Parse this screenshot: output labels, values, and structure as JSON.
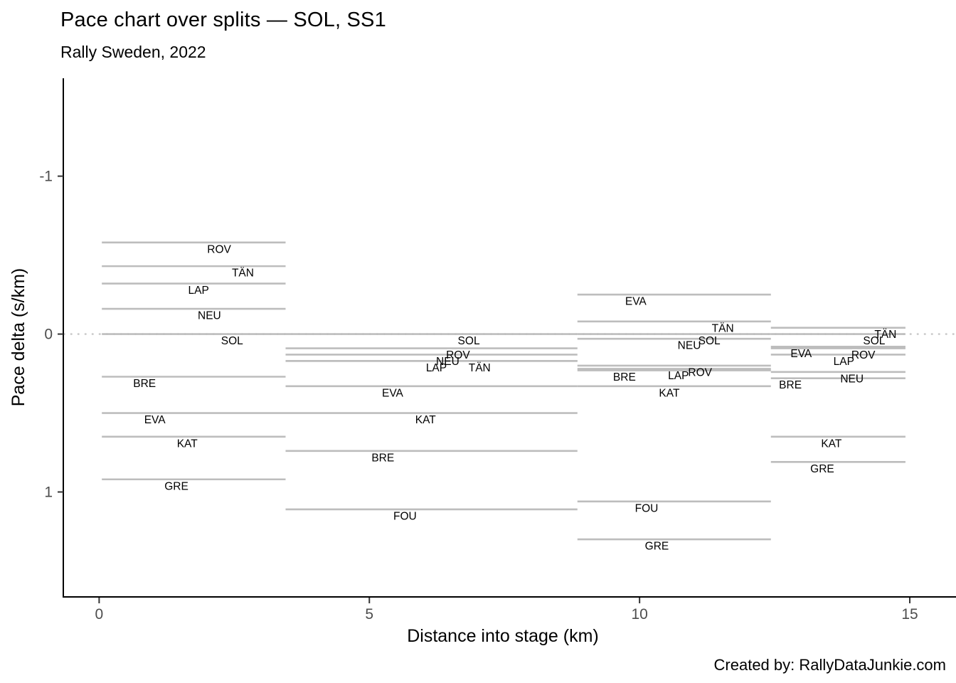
{
  "title": "Pace chart over splits — SOL, SS1",
  "subtitle": "Rally Sweden, 2022",
  "caption": "Created by: RallyDataJunkie.com",
  "chart_data": {
    "type": "segment",
    "title": "Pace chart over splits — SOL, SS1",
    "subtitle": "Rally Sweden, 2022",
    "xlabel": "Distance into stage (km)",
    "ylabel": "Pace delta (s/km)",
    "x_ticks": [
      0,
      5,
      10,
      15
    ],
    "y_ticks": [
      -1,
      0,
      1
    ],
    "xlim": [
      -0.65,
      15.75
    ],
    "ylim_bottom": 1.66,
    "ylim_top": -1.62,
    "y_axis_reversed": true,
    "grid": false,
    "legend": "none",
    "reference_line": {
      "y": 0,
      "style": "dotted"
    },
    "splits_km": [
      [
        0.05,
        3.45
      ],
      [
        3.45,
        8.85
      ],
      [
        8.85,
        12.43
      ],
      [
        12.43,
        14.92
      ]
    ],
    "series": [
      {
        "driver": "ROV",
        "deltas": [
          -0.58,
          0.09,
          0.2,
          0.09
        ],
        "label_x": [
          2.22,
          6.64,
          11.12,
          14.14
        ]
      },
      {
        "driver": "TÄN",
        "deltas": [
          -0.43,
          0.17,
          -0.08,
          -0.04
        ],
        "label_x": [
          2.66,
          7.04,
          11.54,
          14.55
        ]
      },
      {
        "driver": "LAP",
        "deltas": [
          -0.32,
          0.17,
          0.22,
          0.13
        ],
        "label_x": [
          1.84,
          6.24,
          10.72,
          13.78
        ]
      },
      {
        "driver": "NEU",
        "deltas": [
          -0.16,
          0.13,
          0.03,
          0.24
        ],
        "label_x": [
          2.04,
          6.45,
          10.92,
          13.93
        ]
      },
      {
        "driver": "SOL",
        "deltas": [
          0.0,
          0.0,
          0.0,
          0.0
        ],
        "label_x": [
          2.46,
          6.84,
          11.29,
          14.34
        ]
      },
      {
        "driver": "BRE",
        "deltas": [
          0.27,
          0.74,
          0.23,
          0.28
        ],
        "label_x": [
          0.84,
          5.25,
          9.72,
          12.79
        ]
      },
      {
        "driver": "EVA",
        "deltas": [
          0.5,
          0.33,
          -0.25,
          0.08
        ],
        "label_x": [
          1.03,
          5.43,
          9.93,
          12.99
        ]
      },
      {
        "driver": "KAT",
        "deltas": [
          0.65,
          0.5,
          0.33,
          0.65
        ],
        "label_x": [
          1.63,
          6.04,
          10.55,
          13.55
        ]
      },
      {
        "driver": "GRE",
        "deltas": [
          0.92,
          null,
          1.3,
          0.81
        ],
        "label_x": [
          1.43,
          null,
          10.32,
          13.38
        ]
      },
      {
        "driver": "FOU",
        "deltas": [
          null,
          1.11,
          1.06,
          null
        ],
        "label_x": [
          null,
          5.66,
          10.13,
          null
        ]
      }
    ],
    "colors": {
      "segment": "#bdbdbd",
      "reference_dotted": "#c9c9c9",
      "axis_line": "#000000",
      "tick_mark": "#333333",
      "tick_label": "#4d4d4d",
      "driver_label": "#000000"
    }
  }
}
